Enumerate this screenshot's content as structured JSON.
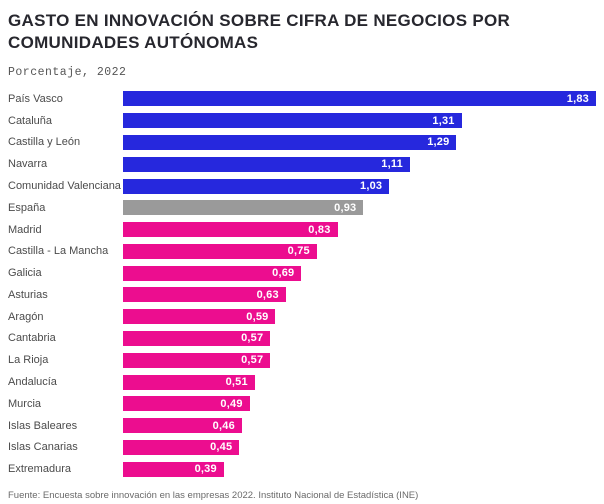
{
  "page": {
    "title_line1": "GASTO EN INNOVACIÓN SOBRE CIFRA DE NEGOCIOS POR",
    "title_line2": "COMUNIDADES AUTÓNOMAS",
    "subtitle": "Porcentaje, 2022",
    "source": "Fuente: Encuesta sobre innovación en las empresas 2022. Instituto Nacional de Estadística (INE)"
  },
  "colors": {
    "blue": "#2628DD",
    "pink": "#EC0D8F",
    "gray": "#9A9A9A",
    "value_text": "#FFFFFF",
    "title_text": "#27272E",
    "label_text": "#4B4B4B"
  },
  "chart_data": {
    "type": "bar",
    "orientation": "horizontal",
    "title": "GASTO EN INNOVACIÓN SOBRE CIFRA DE NEGOCIOS POR COMUNIDADES AUTÓNOMAS",
    "subtitle": "Porcentaje, 2022",
    "xlabel": "",
    "ylabel": "",
    "xlim": [
      0,
      1.83
    ],
    "grid": false,
    "legend": false,
    "decimal_separator": ",",
    "categories": [
      "País Vasco",
      "Cataluña",
      "Castilla y León",
      "Navarra",
      "Comunidad Valenciana",
      "España",
      "Madrid",
      "Castilla - La Mancha",
      "Galicia",
      "Asturias",
      "Aragón",
      "Cantabria",
      "La Rioja",
      "Andalucía",
      "Murcia",
      "Islas Baleares",
      "Islas Canarias",
      "Extremadura"
    ],
    "values": [
      1.83,
      1.31,
      1.29,
      1.11,
      1.03,
      0.93,
      0.83,
      0.75,
      0.69,
      0.63,
      0.59,
      0.57,
      0.57,
      0.51,
      0.49,
      0.46,
      0.45,
      0.39
    ],
    "value_labels": [
      "1,83",
      "1,31",
      "1,29",
      "1,11",
      "1,03",
      "0,93",
      "0,83",
      "0,75",
      "0,69",
      "0,63",
      "0,59",
      "0,57",
      "0,57",
      "0,51",
      "0,49",
      "0,46",
      "0,45",
      "0,39"
    ],
    "bar_color_keys": [
      "blue",
      "blue",
      "blue",
      "blue",
      "blue",
      "gray",
      "pink",
      "pink",
      "pink",
      "pink",
      "pink",
      "pink",
      "pink",
      "pink",
      "pink",
      "pink",
      "pink",
      "pink"
    ]
  }
}
